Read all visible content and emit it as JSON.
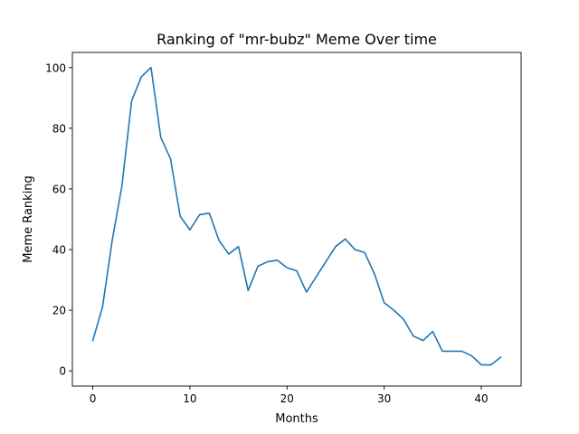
{
  "chart_data": {
    "type": "line",
    "title": "Ranking of \"mr-bubz\" Meme Over time",
    "xlabel": "Months",
    "ylabel": "Meme Ranking",
    "xlim": [
      -2.1,
      44.1
    ],
    "ylim": [
      -5,
      105
    ],
    "xticks": [
      0,
      10,
      20,
      30,
      40
    ],
    "yticks": [
      0,
      20,
      40,
      60,
      80,
      100
    ],
    "grid": false,
    "legend": "none",
    "series": [
      {
        "color": "#1f77b4",
        "x": [
          0,
          1,
          2,
          3,
          4,
          5,
          6,
          7,
          8,
          9,
          10,
          11,
          12,
          13,
          14,
          15,
          16,
          17,
          18,
          19,
          20,
          21,
          22,
          23,
          24,
          25,
          26,
          27,
          28,
          29,
          30,
          31,
          32,
          33,
          34,
          35,
          36,
          37,
          38,
          39,
          40,
          41,
          42
        ],
        "y": [
          10,
          21,
          43,
          61,
          89,
          97,
          100,
          77,
          70,
          51,
          46.5,
          51.5,
          52,
          43,
          38.5,
          41,
          26.5,
          34.5,
          36,
          36.5,
          34,
          33,
          26,
          31,
          36,
          41,
          43.5,
          40,
          39,
          32,
          22.5,
          20,
          17,
          11.5,
          10,
          13,
          6.5,
          6.5,
          6.5,
          5,
          2,
          2,
          4.5
        ]
      }
    ]
  }
}
